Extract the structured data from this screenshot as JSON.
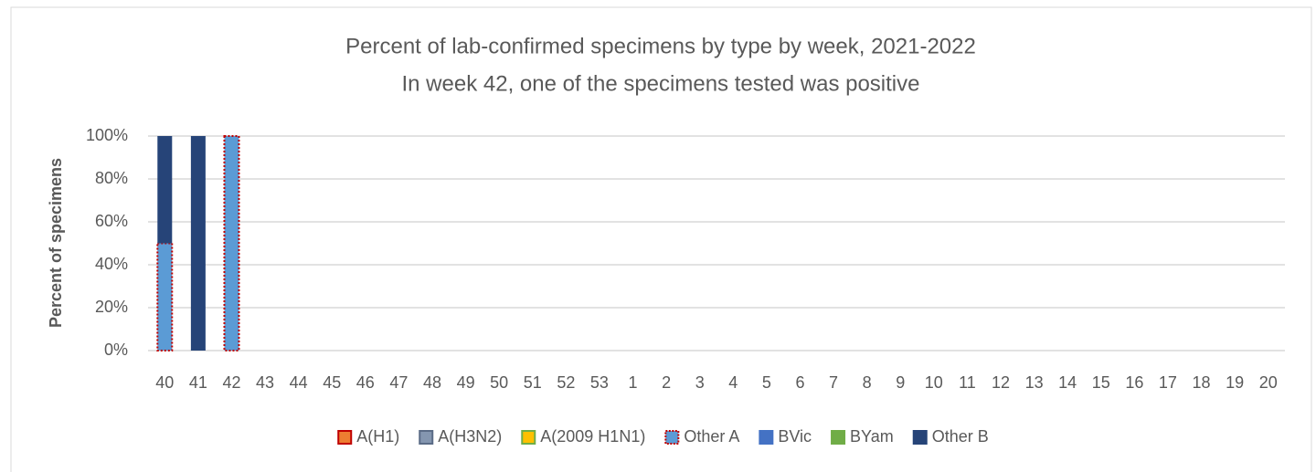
{
  "chart_data": {
    "type": "bar",
    "stacked": true,
    "title": "Percent of lab-confirmed specimens by type by week, 2021-2022",
    "subtitle": "In week 42, one of the specimens tested was positive",
    "y_label": "Percent of specimens",
    "categories": [
      "40",
      "41",
      "42",
      "43",
      "44",
      "45",
      "46",
      "47",
      "48",
      "49",
      "50",
      "51",
      "52",
      "53",
      "1",
      "2",
      "3",
      "4",
      "5",
      "6",
      "7",
      "8",
      "9",
      "10",
      "11",
      "12",
      "13",
      "14",
      "15",
      "16",
      "17",
      "18",
      "19",
      "20"
    ],
    "series": [
      {
        "name": "A(H1)",
        "color": "#ed7d31",
        "edgecolor": "#c00000",
        "values": [
          0,
          0,
          0,
          0,
          0,
          0,
          0,
          0,
          0,
          0,
          0,
          0,
          0,
          0,
          0,
          0,
          0,
          0,
          0,
          0,
          0,
          0,
          0,
          0,
          0,
          0,
          0,
          0,
          0,
          0,
          0,
          0,
          0,
          0
        ]
      },
      {
        "name": "A(H3N2)",
        "color": "#8496b0",
        "edgecolor": "#5a6b86",
        "values": [
          0,
          0,
          0,
          0,
          0,
          0,
          0,
          0,
          0,
          0,
          0,
          0,
          0,
          0,
          0,
          0,
          0,
          0,
          0,
          0,
          0,
          0,
          0,
          0,
          0,
          0,
          0,
          0,
          0,
          0,
          0,
          0,
          0,
          0
        ]
      },
      {
        "name": "A(2009 H1N1)",
        "color": "#ffc000",
        "edgecolor": "#70ad47",
        "values": [
          0,
          0,
          0,
          0,
          0,
          0,
          0,
          0,
          0,
          0,
          0,
          0,
          0,
          0,
          0,
          0,
          0,
          0,
          0,
          0,
          0,
          0,
          0,
          0,
          0,
          0,
          0,
          0,
          0,
          0,
          0,
          0,
          0,
          0
        ]
      },
      {
        "name": "Other A",
        "color": "#5b9bd5",
        "edgecolor": "#c00000",
        "dotted": true,
        "values": [
          50,
          0,
          100,
          0,
          0,
          0,
          0,
          0,
          0,
          0,
          0,
          0,
          0,
          0,
          0,
          0,
          0,
          0,
          0,
          0,
          0,
          0,
          0,
          0,
          0,
          0,
          0,
          0,
          0,
          0,
          0,
          0,
          0,
          0
        ]
      },
      {
        "name": "BVic",
        "color": "#4472c4",
        "values": [
          0,
          0,
          0,
          0,
          0,
          0,
          0,
          0,
          0,
          0,
          0,
          0,
          0,
          0,
          0,
          0,
          0,
          0,
          0,
          0,
          0,
          0,
          0,
          0,
          0,
          0,
          0,
          0,
          0,
          0,
          0,
          0,
          0,
          0
        ]
      },
      {
        "name": "BYam",
        "color": "#70ad47",
        "values": [
          0,
          0,
          0,
          0,
          0,
          0,
          0,
          0,
          0,
          0,
          0,
          0,
          0,
          0,
          0,
          0,
          0,
          0,
          0,
          0,
          0,
          0,
          0,
          0,
          0,
          0,
          0,
          0,
          0,
          0,
          0,
          0,
          0,
          0
        ]
      },
      {
        "name": "Other B",
        "color": "#264478",
        "values": [
          50,
          100,
          0,
          0,
          0,
          0,
          0,
          0,
          0,
          0,
          0,
          0,
          0,
          0,
          0,
          0,
          0,
          0,
          0,
          0,
          0,
          0,
          0,
          0,
          0,
          0,
          0,
          0,
          0,
          0,
          0,
          0,
          0,
          0
        ]
      }
    ],
    "ylim": [
      0,
      100
    ],
    "yticks": [
      {
        "value": 0,
        "label": "0%"
      },
      {
        "value": 20,
        "label": "20%"
      },
      {
        "value": 40,
        "label": "40%"
      },
      {
        "value": 60,
        "label": "60%"
      },
      {
        "value": 80,
        "label": "80%"
      },
      {
        "value": 100,
        "label": "100%"
      }
    ],
    "grid": true,
    "legend": "bottom"
  }
}
